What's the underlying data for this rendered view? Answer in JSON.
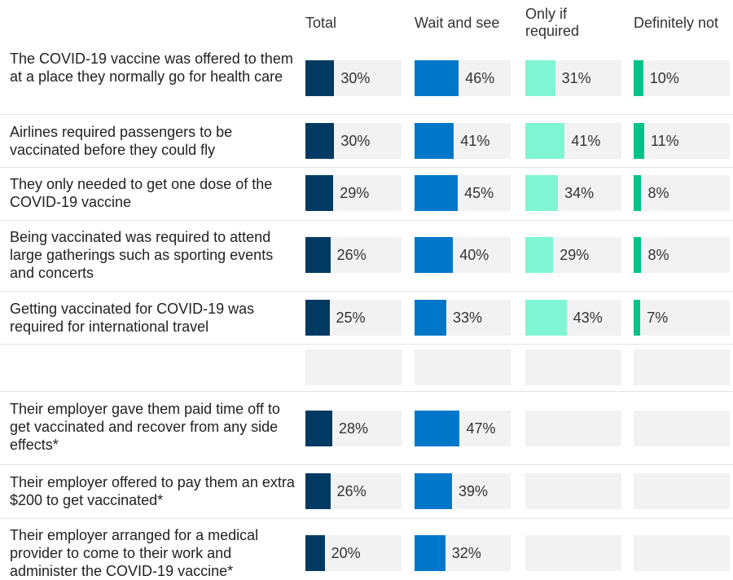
{
  "chart_data": {
    "type": "bar_table",
    "categories": [
      "The COVID-19 vaccine was offered to them at a place they normally go for health care",
      "Airlines required passengers to be vaccinated before they could fly",
      "They only needed to get one dose of the COVID-19 vaccine",
      "Being vaccinated was required to attend large gatherings such as sporting events and concerts",
      "Getting vaccinated for COVID-19 was required for international travel",
      null,
      "Their employer gave them paid time off to get vaccinated and recover from any side effects*",
      "Their employer offered to pay them an extra $200 to get vaccinated*",
      "Their employer arranged for a medical provider to come to their work and administer the COVID-19 vaccine*"
    ],
    "xlim": [
      0,
      100
    ],
    "series": [
      {
        "name": "Total",
        "color": "#003a63",
        "values": [
          30,
          30,
          29,
          26,
          25,
          null,
          28,
          26,
          20
        ],
        "value_labels": [
          "30%",
          "30%",
          "29%",
          "26%",
          "25%",
          null,
          "28%",
          "26%",
          "20%"
        ]
      },
      {
        "name": "Wait and see",
        "color": "#0077c8",
        "values": [
          46,
          41,
          45,
          40,
          33,
          null,
          47,
          39,
          32
        ],
        "value_labels": [
          "46%",
          "41%",
          "45%",
          "40%",
          "33%",
          null,
          "47%",
          "39%",
          "32%"
        ]
      },
      {
        "name": "Only if required",
        "color": "#7ff5d4",
        "values": [
          31,
          41,
          34,
          29,
          43,
          null,
          null,
          null,
          null
        ],
        "value_labels": [
          "31%",
          "41%",
          "34%",
          "29%",
          "43%",
          null,
          null,
          null,
          null
        ]
      },
      {
        "name": "Definitely not",
        "color": "#00c389",
        "values": [
          10,
          11,
          8,
          8,
          7,
          null,
          null,
          null,
          null
        ],
        "value_labels": [
          "10%",
          "11%",
          "8%",
          "8%",
          "7%",
          null,
          null,
          null,
          null
        ]
      }
    ]
  }
}
